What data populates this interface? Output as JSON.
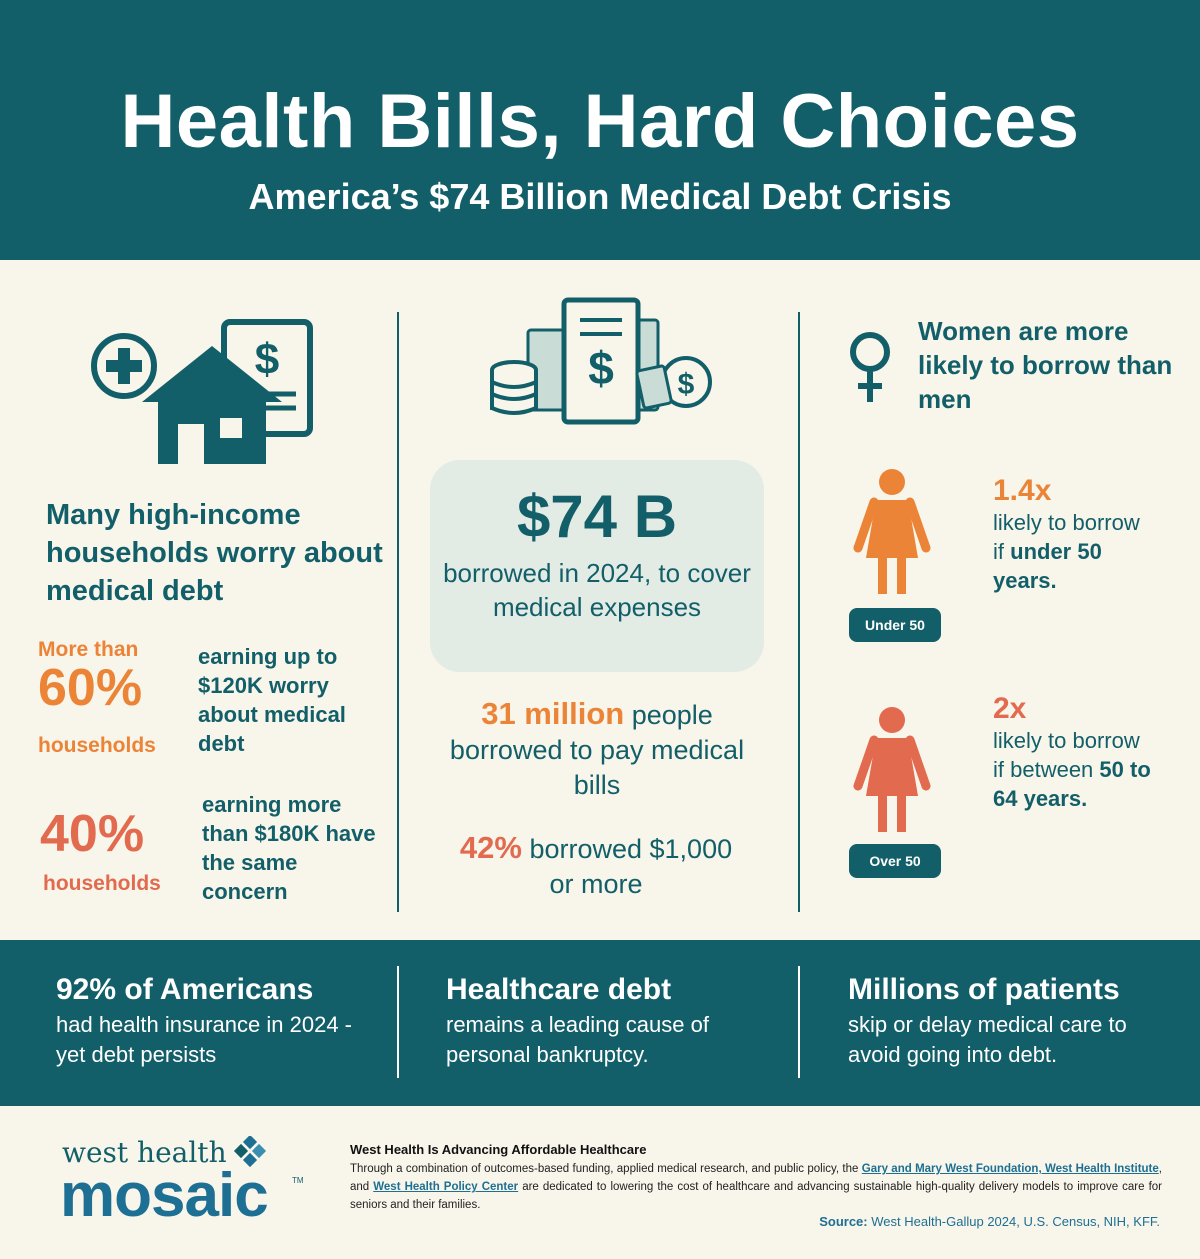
{
  "header": {
    "title": "Health Bills, Hard Choices",
    "subtitle": "America’s $74 Billion Medical Debt Crisis"
  },
  "left": {
    "icon": "house-medical-bill-icon",
    "heading": "Many high-income households worry about medical debt",
    "stat1": {
      "pre": "More than",
      "value": "60%",
      "post": "households",
      "desc": "earning up to $120K worry about medical debt"
    },
    "stat2": {
      "value": "40%",
      "post": "households",
      "desc": "earning more than $180K have the same concern"
    }
  },
  "center": {
    "icon": "money-bill-coins-icon",
    "amount": "$74 B",
    "amount_desc": "borrowed in 2024, to cover medical expenses",
    "stat1_value": "31 million",
    "stat1_text": "people borrowed to pay medical bills",
    "stat2_value": "42%",
    "stat2_text": "borrowed $1,000 or more"
  },
  "right": {
    "icon": "female-symbol-icon",
    "heading": "Women are more likely to borrow than men",
    "item1": {
      "badge": "Under 50",
      "multiplier": "1.4x",
      "text_a": "likely to borrow if",
      "text_b": "under 50 years."
    },
    "item2": {
      "badge": "Over 50",
      "multiplier": "2x",
      "text_a": "likely to borrow if between",
      "text_b": "50 to 64 years."
    }
  },
  "band": [
    {
      "title": "92% of Americans",
      "text": "had health insurance in 2024 - yet debt persists"
    },
    {
      "title": "Healthcare debt",
      "text": "remains a leading cause of personal bankruptcy."
    },
    {
      "title": "Millions of patients",
      "text": "skip or delay medical care to avoid going into debt."
    }
  ],
  "footer": {
    "logo_top": "west health",
    "logo_main": "mosaic",
    "logo_tm": "TM",
    "title": "West Health Is Advancing Affordable Healthcare",
    "text_1": "Through a combination of outcomes-based funding, applied medical research, and public policy, the ",
    "link_1": "Gary and Mary West Foundation, West Health Institute",
    "text_2": ", and ",
    "link_2": "West Health Policy Center",
    "text_3": " are dedicated to lowering the cost of healthcare and advancing sustainable high-quality delivery models to improve care for seniors and their families.",
    "source_label": "Source:",
    "source_text": " West Health-Gallup 2024, U.S. Census, NIH, KFF."
  },
  "colors": {
    "teal": "#135f69",
    "orange": "#ec8437",
    "coral": "#e26a4f",
    "cream": "#f8f5ea",
    "box": "#e2ebe4",
    "link": "#1d6f93"
  }
}
